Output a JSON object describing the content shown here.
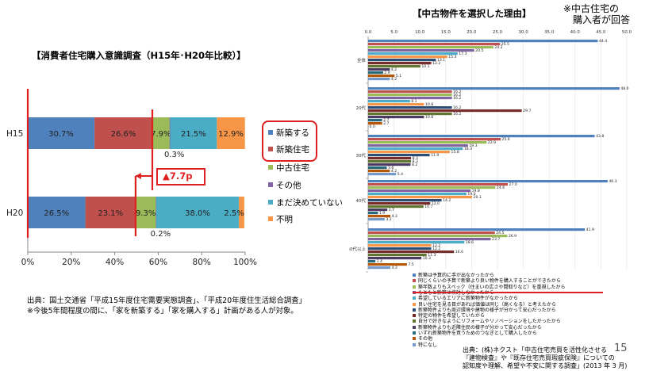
{
  "left": {
    "title": "【消費者住宅購入意識調査（H15年･H20年比較）】",
    "chart_data": {
      "type": "bar",
      "stacked": true,
      "orientation": "horizontal",
      "categories": [
        "H15",
        "H20"
      ],
      "series": [
        {
          "name": "新築する",
          "color": "#4f81bd",
          "values": [
            30.7,
            26.5
          ]
        },
        {
          "name": "新築住宅",
          "color": "#c0504d",
          "values": [
            26.6,
            23.1
          ]
        },
        {
          "name": "中古住宅",
          "color": "#9bbb59",
          "values": [
            7.9,
            9.3
          ]
        },
        {
          "name": "その他",
          "color": "#8064a2",
          "values": [
            0.3,
            0.2
          ]
        },
        {
          "name": "まだ決めていない",
          "color": "#4bacc6",
          "values": [
            21.5,
            38.0
          ]
        },
        {
          "name": "不明",
          "color": "#f79646",
          "values": [
            12.9,
            2.5
          ]
        }
      ],
      "value_labels": [
        [
          "30.7%",
          "26.6%",
          "7.9%",
          "0.3%",
          "21.5%",
          "12.9%"
        ],
        [
          "26.5%",
          "23.1%",
          "9.3%",
          "0.2%",
          "38.0%",
          "2.5%"
        ]
      ],
      "xlim": [
        0,
        100
      ],
      "xticks": [
        "0%",
        "20%",
        "40%",
        "60%",
        "80%",
        "100%"
      ],
      "legend_position": "right",
      "annotation": "▲7.7p"
    },
    "source_line1": "出典：国土交通省「平成15年度住宅需要実態調査」、「平成20年度住生活総合調査」",
    "source_line2": "※今後5年間程度の間に、「家を新築する」「家を購入する」計画がある人が対象。"
  },
  "right": {
    "title": "【中古物件を選択した理由】",
    "note_line1": "※中古住宅の",
    "note_line2": "購入者が回答",
    "chart_data": {
      "type": "bar",
      "orientation": "horizontal",
      "xlim": [
        0,
        50
      ],
      "xticks": [
        "0.0",
        "5.0",
        "10.0",
        "15.0",
        "20.0",
        "25.0",
        "30.0",
        "35.0",
        "40.0",
        "45.0",
        "50.0"
      ],
      "groups": [
        "全体",
        "20代",
        "30代",
        "40代",
        "50代以上"
      ],
      "series": [
        {
          "name": "新築は予算的に手が出なかったから",
          "color": "#4f81bd"
        },
        {
          "name": "同じくらいの予算で新築より良い物件を購入することができたから",
          "color": "#c0504d"
        },
        {
          "name": "築年数よりもスペック（住まいの広さや間取りなど）を重視したから",
          "color": "#9bbb59"
        },
        {
          "name": "もともと新築は検討しなかったから",
          "color": "#8064a2"
        },
        {
          "name": "希望しているエリアに新築物件がなかったから",
          "color": "#4bacc6"
        },
        {
          "name": "良い住宅を見る目があれば価値は同じ（高くなる）と考えたから",
          "color": "#f79646"
        },
        {
          "name": "新築物件よりも周辺環境や建物の様子が分かって安心だったから",
          "color": "#2c4d75"
        },
        {
          "name": "特定の物件を希望していたから",
          "color": "#772c2a"
        },
        {
          "name": "自分で好きなようにリフォームやリノベーションをしたかったから",
          "color": "#5f7530"
        },
        {
          "name": "新築物件よりも近隣住民の様子が分かって安心だったから",
          "color": "#4d3b62"
        },
        {
          "name": "いずれ新築物件を買うためのつなぎとして購入したから",
          "color": "#276a7c"
        },
        {
          "name": "その他",
          "color": "#b65708"
        },
        {
          "name": "特になし",
          "color": "#729aca"
        }
      ],
      "values": [
        [
          44.4,
          25.5,
          24.2,
          20.5,
          17.3,
          15.3,
          13.1,
          12.2,
          10.1,
          4.2,
          2.9,
          5.1,
          4.2
        ],
        [
          48.6,
          16.2,
          16.2,
          16.2,
          8.1,
          10.8,
          16.2,
          29.7,
          16.2,
          10.8,
          2.7,
          2.7,
          0.0
        ],
        [
          43.8,
          25.6,
          22.9,
          19.3,
          18.3,
          15.8,
          11.9,
          8.3,
          8.3,
          8.2,
          3.6,
          4.2,
          5.4
        ],
        [
          46.3,
          27.0,
          24.6,
          19.8,
          19.0,
          20.1,
          14.2,
          12.0,
          10.7,
          3.7,
          1.9,
          4.3,
          3.2
        ],
        [
          41.9,
          24.5,
          26.9,
          23.7,
          18.6,
          12.2,
          12.2,
          16.6,
          11.3,
          10.3,
          1.4,
          7.5,
          4.3
        ]
      ]
    },
    "source_line1": "出典：(株)ネクスト「中古住宅売買を活性化させる",
    "source_line2": "『建物検査』や『既存住宅売買瑕疵保険』についての",
    "source_line3": "認知度や理解、希望や不安に関する調査」(2013 年 3 月)",
    "page_number": "15"
  }
}
